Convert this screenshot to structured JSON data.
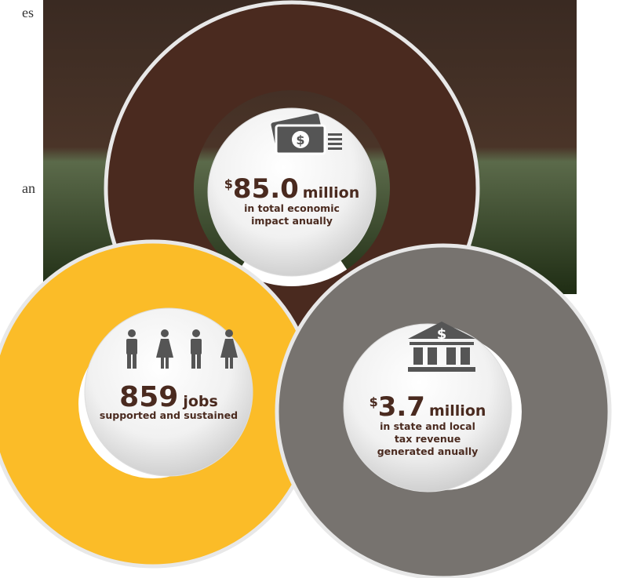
{
  "left_text_fragments": [
    "es",
    "an"
  ],
  "stats": [
    {
      "prefix": "$",
      "number": "85.0",
      "unit": "million",
      "caption": [
        "in total economic",
        "impact anually"
      ]
    },
    {
      "number": "859",
      "unit": "jobs",
      "caption": [
        "supported and sustained"
      ]
    },
    {
      "prefix": "$",
      "number": "3.7",
      "unit": "million",
      "caption": [
        "in state and local",
        "tax revenue",
        "generated anually"
      ]
    }
  ]
}
